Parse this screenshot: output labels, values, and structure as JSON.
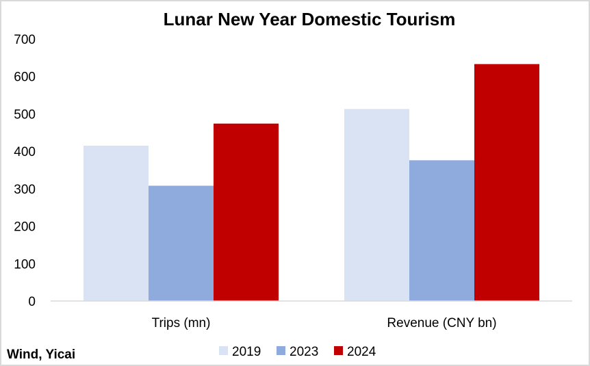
{
  "chart_data": {
    "type": "bar",
    "title": "Lunar New Year Domestic Tourism",
    "categories": [
      "Trips (mn)",
      "Revenue (CNY bn)"
    ],
    "series": [
      {
        "name": "2019",
        "values": [
          415,
          513
        ],
        "color": "#dae3f3"
      },
      {
        "name": "2023",
        "values": [
          308,
          376
        ],
        "color": "#8faadc"
      },
      {
        "name": "2024",
        "values": [
          474,
          633
        ],
        "color": "#c00000"
      }
    ],
    "ylim": [
      0,
      700
    ],
    "yticks": [
      0,
      100,
      200,
      300,
      400,
      500,
      600,
      700
    ],
    "grid": false,
    "legend_position": "bottom"
  },
  "source": "Wind, Yicai"
}
